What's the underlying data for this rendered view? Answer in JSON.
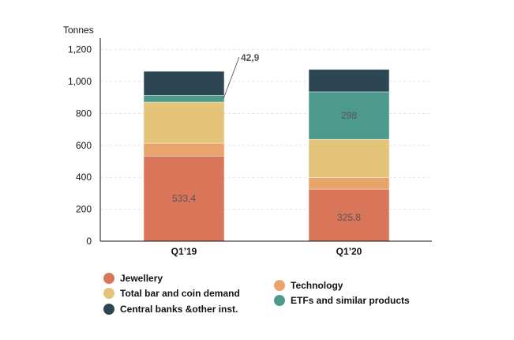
{
  "chart_data": {
    "type": "bar",
    "stacked": true,
    "ylabel": "Tonnes",
    "ylim": [
      0,
      1250
    ],
    "yticks": [
      0,
      200,
      400,
      600,
      800,
      1000,
      1200
    ],
    "ytick_labels": [
      "0",
      "200",
      "400",
      "600",
      "800",
      "1,000",
      "1,200"
    ],
    "grid": true,
    "categories": [
      "Q1'19",
      "Q1'20"
    ],
    "category_labels": [
      "Q1’19",
      "Q1’20"
    ],
    "series": [
      {
        "name": "Jewellery",
        "color": "#d9765a",
        "values": [
          533.4,
          325.8
        ],
        "labels": [
          "533,4",
          "325,8"
        ]
      },
      {
        "name": "Technology",
        "color": "#e9a46b",
        "values": [
          80,
          72
        ]
      },
      {
        "name": "Total bar and coin demand",
        "color": "#e4c478",
        "values": [
          258,
          240
        ]
      },
      {
        "name": "ETFs and similar products",
        "color": "#4d998c",
        "values": [
          42.9,
          298
        ],
        "labels": [
          "42,9",
          "298"
        ]
      },
      {
        "name": "Central banks &other inst.",
        "color": "#2d4654",
        "values": [
          150,
          140
        ]
      }
    ],
    "legend_position": "bottom",
    "legend_order": [
      "Jewellery",
      "Total bar and coin demand",
      "Central banks &other inst.",
      "Technology",
      "ETFs and similar products"
    ]
  }
}
